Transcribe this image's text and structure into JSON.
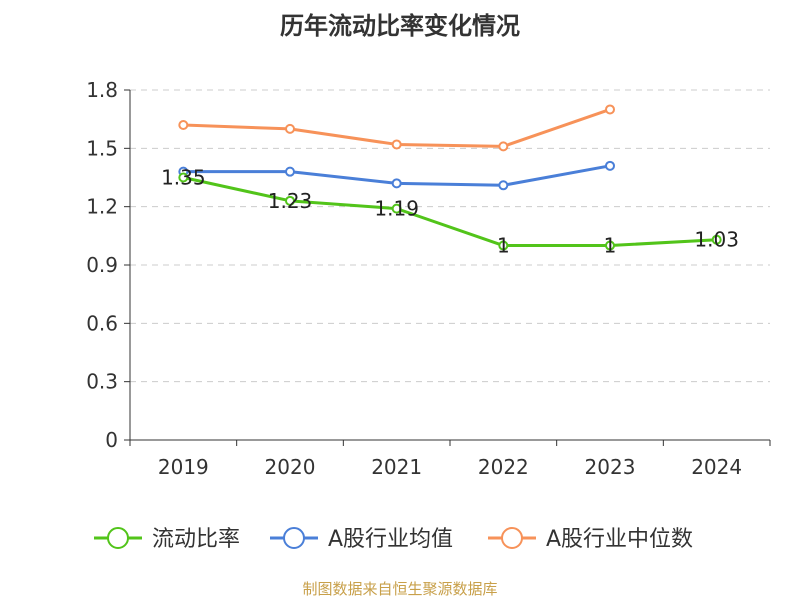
{
  "chart_data": {
    "type": "line",
    "title": "历年流动比率变化情况",
    "categories": [
      "2019",
      "2020",
      "2021",
      "2022",
      "2023",
      "2024"
    ],
    "ylim": [
      0,
      1.8
    ],
    "yticks": [
      "0",
      "0.3",
      "0.6",
      "0.9",
      "1.2",
      "1.5",
      "1.8"
    ],
    "grid": true,
    "legend_position": "bottom",
    "series": [
      {
        "name": "流动比率",
        "color": "#52c41a",
        "values": [
          1.35,
          1.23,
          1.19,
          1.0,
          1.0,
          1.03
        ],
        "labels": [
          "1.35",
          "1.23",
          "1.19",
          "1",
          "1",
          "1.03"
        ]
      },
      {
        "name": "A股行业均值",
        "color": "#4a7fd8",
        "values": [
          1.38,
          1.38,
          1.32,
          1.31,
          1.41,
          null
        ]
      },
      {
        "name": "A股行业中位数",
        "color": "#f79259",
        "values": [
          1.62,
          1.6,
          1.52,
          1.51,
          1.7,
          null
        ]
      }
    ],
    "source": "制图数据来自恒生聚源数据库"
  }
}
